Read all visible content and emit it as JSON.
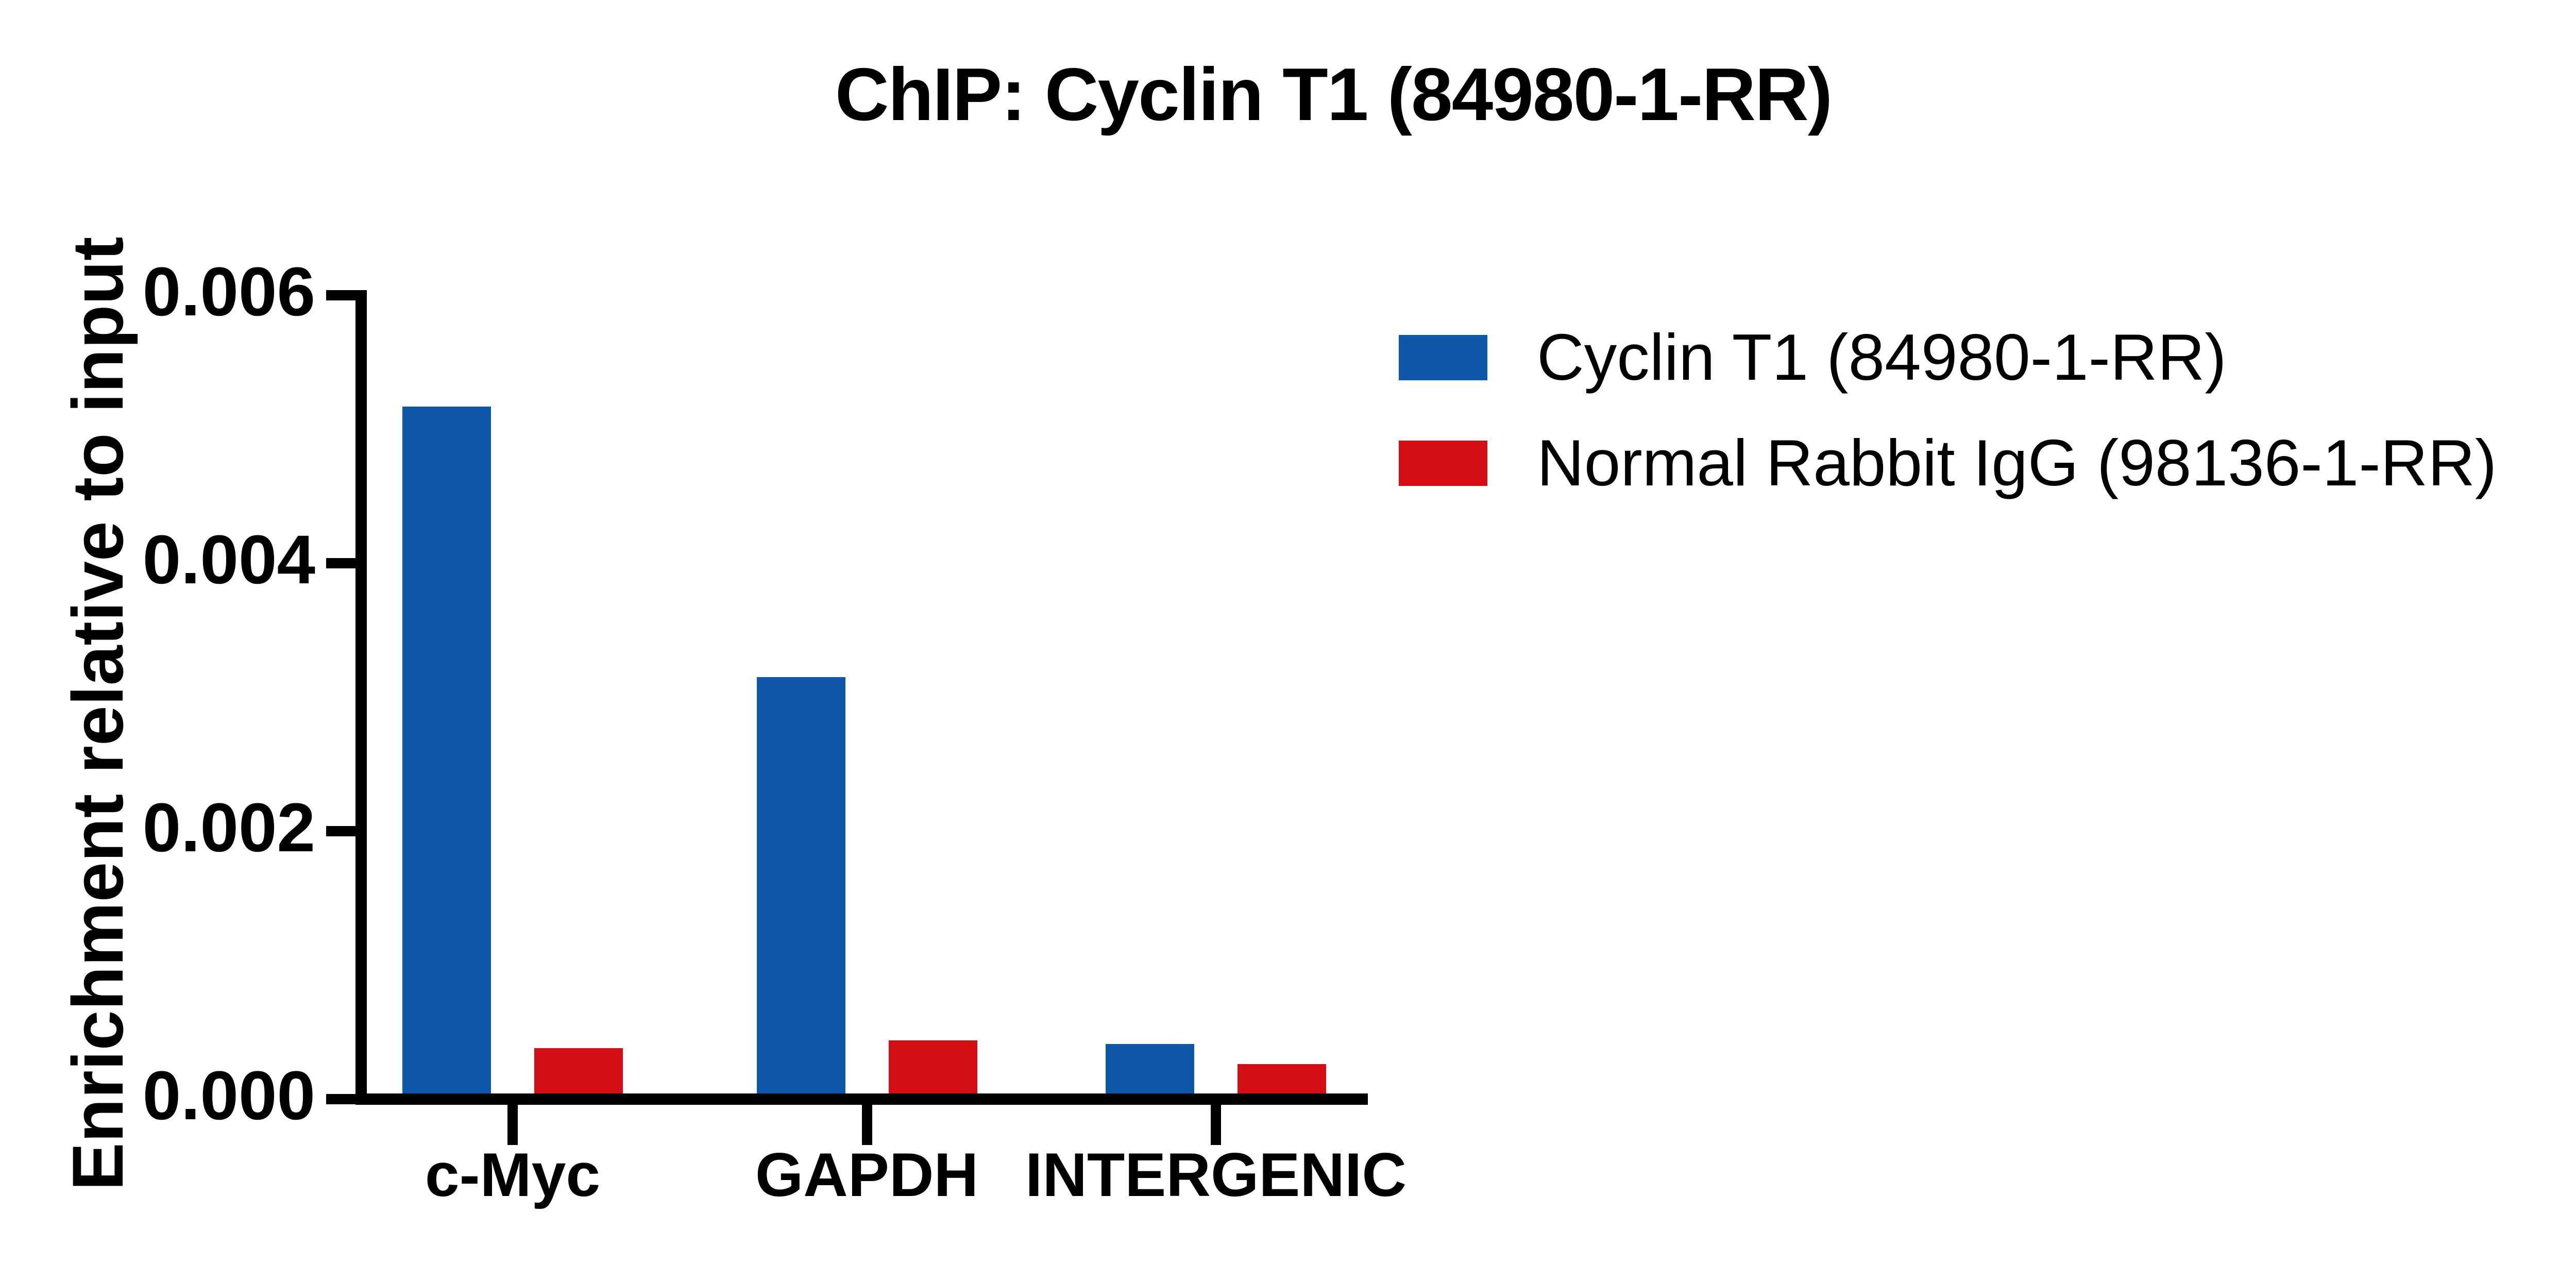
{
  "chart_data": {
    "type": "bar",
    "title": "ChIP: Cyclin T1 (84980-1-RR)",
    "ylabel": "Enrichment relative to input",
    "xlabel": "",
    "categories": [
      "c-Myc",
      "GAPDH",
      "INTERGENIC"
    ],
    "series": [
      {
        "name": "Cyclin T1 (84980-1-RR)",
        "color": "#0E57A8",
        "values": [
          0.00517,
          0.00315,
          0.00041
        ]
      },
      {
        "name": "Normal Rabbit IgG (98136-1-RR)",
        "color": "#D30F16",
        "values": [
          0.00038,
          0.00044,
          0.00026
        ]
      }
    ],
    "ylim": [
      0,
      0.006
    ],
    "yticks": [
      {
        "label": "0.006",
        "value": 0.006
      },
      {
        "label": "0.004",
        "value": 0.004
      },
      {
        "label": "0.002",
        "value": 0.002
      },
      {
        "label": "0.000",
        "value": 0.0
      }
    ],
    "grid": false,
    "legend_position": "right",
    "background_color": "#FFFFFF",
    "text_color": "#000000"
  }
}
